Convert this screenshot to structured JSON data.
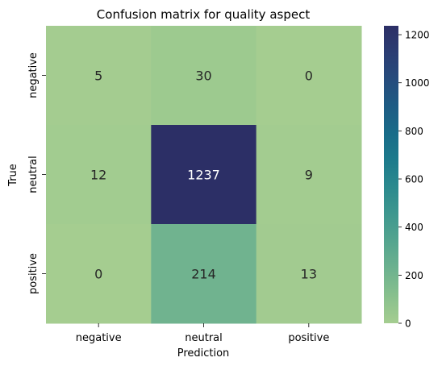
{
  "chart_data": {
    "type": "heatmap",
    "title": "Confusion matrix for quality aspect",
    "xlabel": "Prediction",
    "ylabel": "True",
    "x_categories": [
      "negative",
      "neutral",
      "positive"
    ],
    "y_categories": [
      "negative",
      "neutral",
      "positive"
    ],
    "values": [
      [
        5,
        30,
        0
      ],
      [
        12,
        1237,
        9
      ],
      [
        0,
        214,
        13
      ]
    ],
    "colorbar": {
      "min": 0,
      "max": 1237,
      "ticks": [
        0,
        200,
        400,
        600,
        800,
        1000,
        1200
      ],
      "colormap": "crest",
      "stops": [
        "#a5cd90",
        "#88c08d",
        "#6db28f",
        "#55a58f",
        "#3f988f",
        "#2c8a8e",
        "#1d7b8c",
        "#196c89",
        "#1e5c84",
        "#264c7d",
        "#2b3d73",
        "#2c2f66"
      ]
    },
    "grid": false,
    "annotations": true,
    "colors": {
      "text_dark": "#262626",
      "text_light": "#ffffff"
    }
  }
}
